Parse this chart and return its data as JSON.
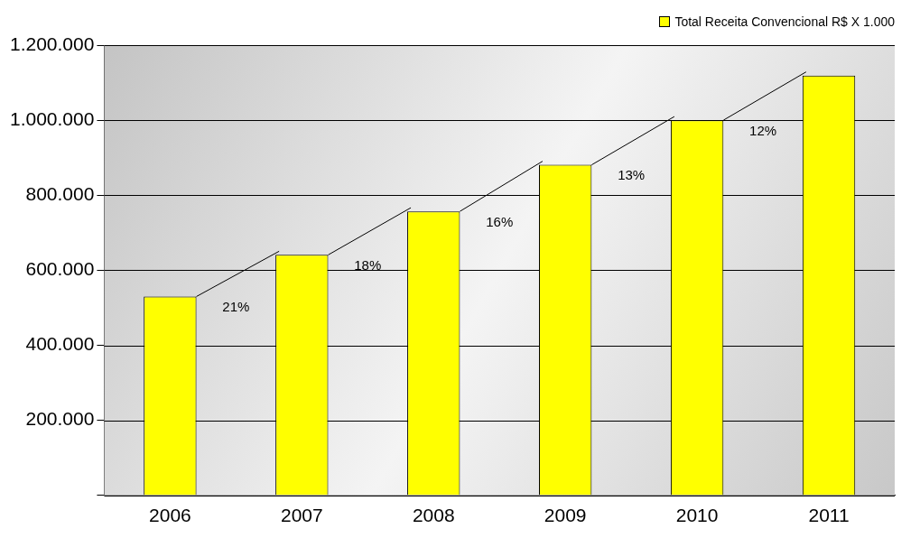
{
  "chart_data": {
    "type": "bar",
    "categories": [
      "2006",
      "2007",
      "2008",
      "2009",
      "2010",
      "2011"
    ],
    "series": [
      {
        "name": "Total Receita Convencional R$ X 1.000",
        "color": "#ffff00",
        "values": [
          530000,
          641000,
          757000,
          881000,
          1000000,
          1119000
        ]
      }
    ],
    "ylim": [
      0,
      1200000
    ],
    "yticks": [
      {
        "value": 0,
        "label": null
      },
      {
        "value": 200000,
        "label": "200.000"
      },
      {
        "value": 400000,
        "label": "400.000"
      },
      {
        "value": 600000,
        "label": "600.000"
      },
      {
        "value": 800000,
        "label": "800.000"
      },
      {
        "value": 1000000,
        "label": "1.000.000"
      },
      {
        "value": 1200000,
        "label": "1.200.000"
      }
    ],
    "grid": "y",
    "legend": "top right",
    "annotations": [
      "21%",
      "18%",
      "16%",
      "13%",
      "12%"
    ]
  }
}
